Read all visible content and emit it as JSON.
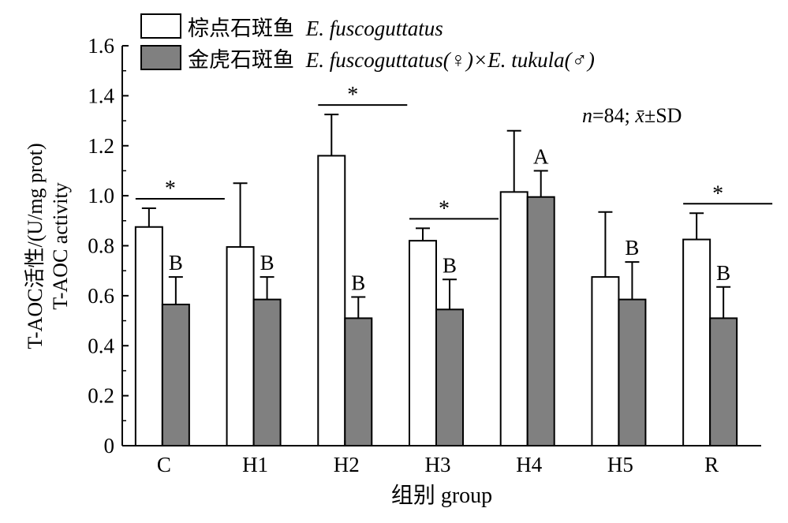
{
  "chart_data": {
    "type": "bar",
    "xlabel": "组别 group",
    "ylabel": [
      "T-AOC活性/(U/mg prot)",
      "T-AOC activity"
    ],
    "ylim": [
      0,
      1.6
    ],
    "yticks": [
      0,
      0.2,
      0.4,
      0.6,
      0.8,
      1.0,
      1.2,
      1.4,
      1.6
    ],
    "ytick_labels": [
      "0",
      "0.2",
      "0.4",
      "0.6",
      "0.8",
      "1.0",
      "1.2",
      "1.4",
      "1.6"
    ],
    "categories": [
      "C",
      "H1",
      "H2",
      "H3",
      "H4",
      "H5",
      "R"
    ],
    "series": [
      {
        "name_cn": "棕点石斑鱼",
        "name_latin": "E. fuscoguttatus",
        "color": "#ffffff",
        "values": [
          0.875,
          0.795,
          1.16,
          0.82,
          1.015,
          0.675,
          0.825
        ],
        "errors": [
          0.075,
          0.255,
          0.165,
          0.05,
          0.245,
          0.26,
          0.105
        ]
      },
      {
        "name_cn": "金虎石斑鱼",
        "name_latin": "E. fuscoguttatus(♀)×E. tukula(♂)",
        "color": "#808080",
        "values": [
          0.565,
          0.585,
          0.51,
          0.545,
          0.995,
          0.585,
          0.51
        ],
        "errors": [
          0.11,
          0.09,
          0.085,
          0.12,
          0.105,
          0.15,
          0.125
        ]
      }
    ],
    "letters": [
      "B",
      "B",
      "B",
      "B",
      "A",
      "B",
      "B"
    ],
    "significance": [
      "*",
      "",
      "*",
      "*",
      "",
      "",
      "*"
    ],
    "annotation": {
      "n_label": "n",
      "n_value": "=84; ",
      "mean_label": "x̄",
      "sd_label": "±SD"
    },
    "legend_position": "top-left"
  }
}
